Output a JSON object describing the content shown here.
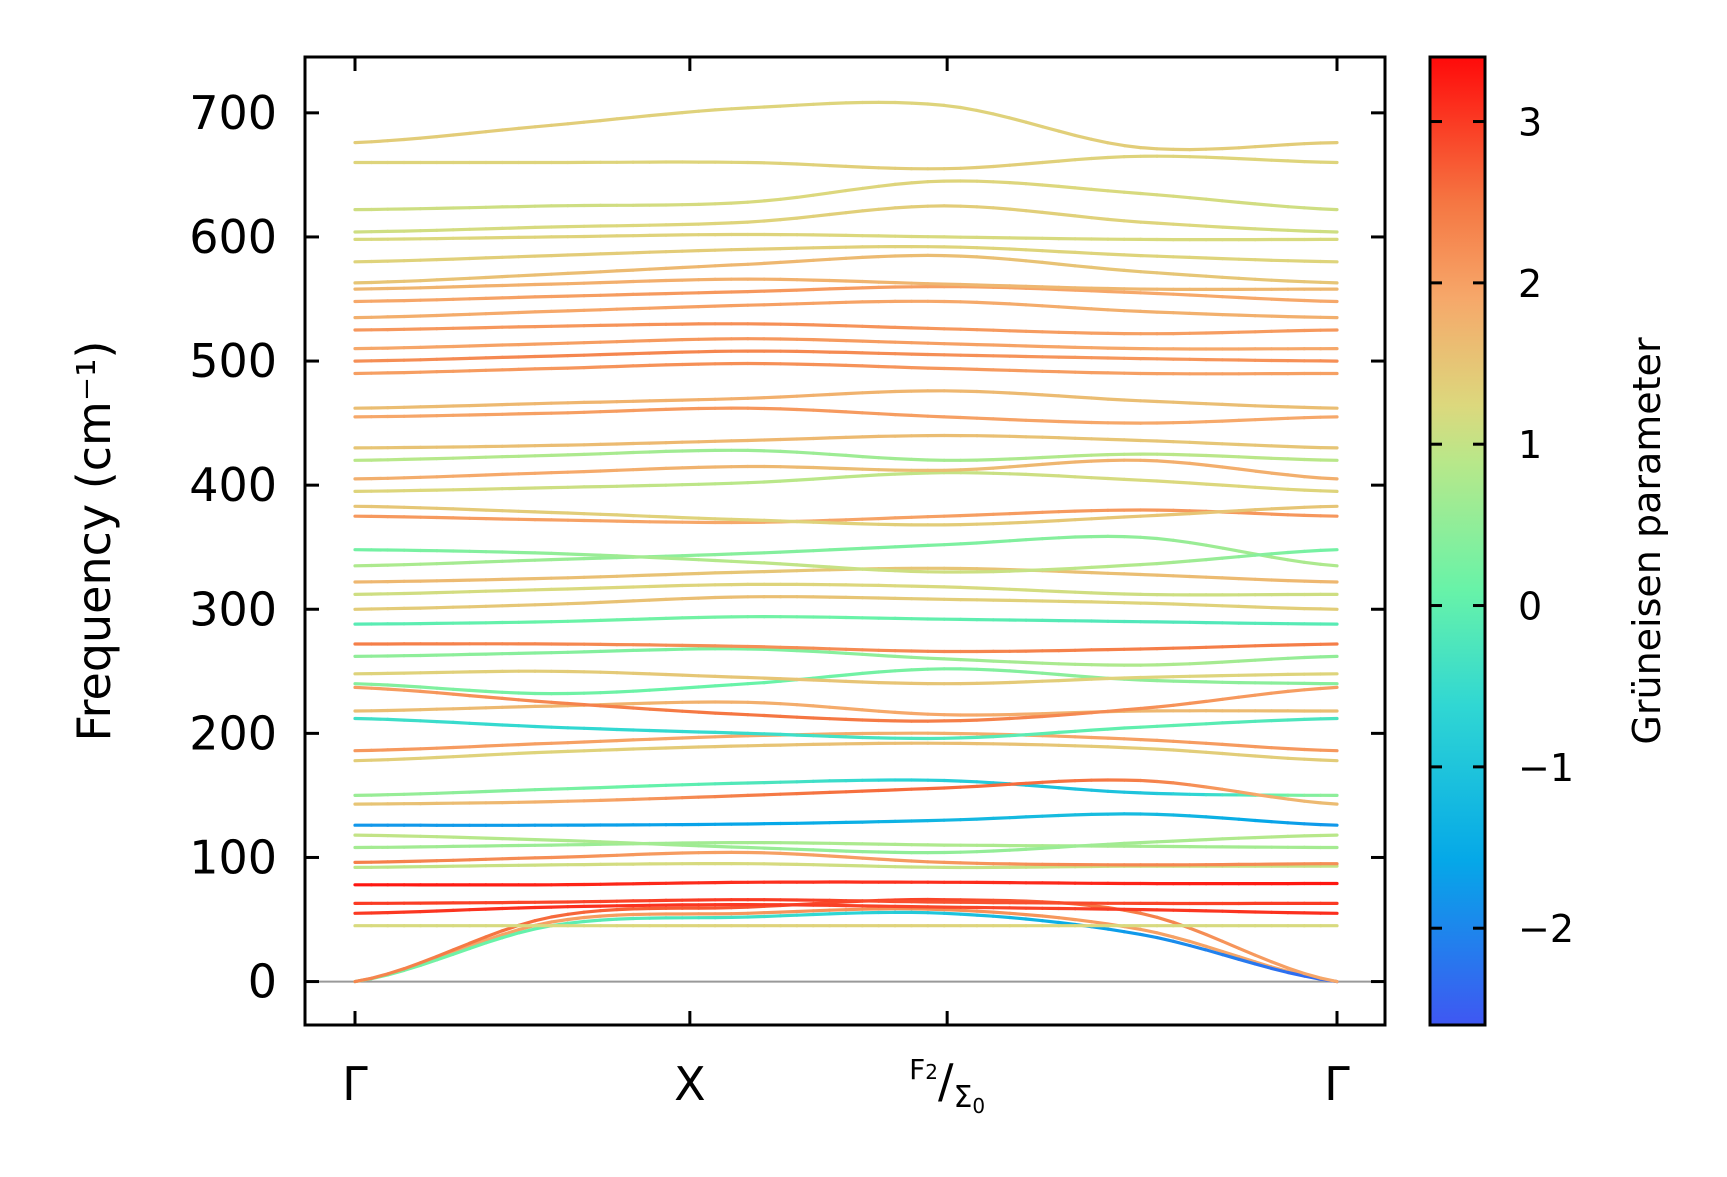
{
  "chart_data": {
    "type": "line",
    "title": "",
    "xlabel": "",
    "ylabel": "Frequency (cm⁻¹)",
    "ylim": [
      -35,
      745
    ],
    "y_ticks": [
      0,
      100,
      200,
      300,
      400,
      500,
      600,
      700
    ],
    "x_ticks": [
      {
        "label": "Γ",
        "pos": 0.0
      },
      {
        "label": "X",
        "pos": 0.341
      },
      {
        "label": "F₂/Σ₀",
        "pos": 0.603
      },
      {
        "label": "Γ",
        "pos": 1.0
      }
    ],
    "x_label_parts": {
      "num": "F",
      "num_sub": "2",
      "den": "Σ",
      "den_sub": "0"
    },
    "zero_line": 0,
    "colorbar": {
      "label": "Grüneisen parameter",
      "range": [
        -2.6,
        3.4
      ],
      "ticks": [
        -2,
        -1,
        0,
        1,
        2,
        3
      ],
      "tick_labels": [
        "−2",
        "−1",
        "0",
        "1",
        "2",
        "3"
      ],
      "colormap": "rainbow"
    },
    "series": [
      {
        "y": [
          0,
          48,
          55,
          58,
          42,
          0
        ],
        "g": [
          1.9,
          2.0,
          2.1,
          2.2,
          2.0,
          1.9
        ]
      },
      {
        "y": [
          0,
          45,
          52,
          55,
          38,
          0
        ],
        "g": [
          0.3,
          0.0,
          -0.4,
          -1.0,
          -1.8,
          -2.4
        ]
      },
      {
        "y": [
          0,
          52,
          60,
          66,
          55,
          0
        ],
        "g": [
          2.3,
          2.6,
          2.8,
          2.9,
          2.4,
          1.9
        ]
      },
      {
        "y": [
          45,
          45,
          45,
          45,
          45,
          45
        ],
        "g": [
          1.2,
          1.2,
          1.3,
          1.3,
          1.2,
          1.2
        ]
      },
      {
        "y": [
          55,
          60,
          62,
          60,
          58,
          55
        ],
        "g": [
          3.0,
          3.1,
          3.0,
          2.9,
          3.0,
          3.1
        ]
      },
      {
        "y": [
          63,
          64,
          66,
          64,
          63,
          63
        ],
        "g": [
          3.0,
          2.9,
          3.0,
          2.8,
          2.9,
          3.0
        ]
      },
      {
        "y": [
          78,
          78,
          80,
          80,
          79,
          79
        ],
        "g": [
          3.3,
          3.2,
          3.1,
          3.1,
          3.2,
          3.3
        ]
      },
      {
        "y": [
          92,
          94,
          95,
          92,
          93,
          93
        ],
        "g": [
          0.9,
          1.1,
          1.2,
          1.0,
          1.1,
          1.0
        ]
      },
      {
        "y": [
          96,
          100,
          104,
          96,
          94,
          95
        ],
        "g": [
          2.4,
          2.2,
          2.0,
          2.1,
          2.3,
          2.2
        ]
      },
      {
        "y": [
          108,
          110,
          112,
          110,
          109,
          108
        ],
        "g": [
          0.7,
          0.6,
          0.7,
          0.8,
          0.7,
          0.7
        ]
      },
      {
        "y": [
          118,
          114,
          108,
          104,
          112,
          118
        ],
        "g": [
          1.0,
          0.8,
          0.6,
          0.5,
          0.7,
          0.9
        ]
      },
      {
        "y": [
          126,
          126,
          127,
          130,
          135,
          126
        ],
        "g": [
          -1.8,
          -1.7,
          -1.6,
          -1.3,
          -1.2,
          -1.8
        ]
      },
      {
        "y": [
          150,
          155,
          160,
          162,
          152,
          150
        ],
        "g": [
          0.6,
          0.3,
          -0.2,
          -0.8,
          -1.0,
          0.5
        ]
      },
      {
        "y": [
          143,
          145,
          150,
          156,
          162,
          143
        ],
        "g": [
          1.5,
          1.8,
          2.4,
          2.6,
          2.4,
          1.6
        ]
      },
      {
        "y": [
          178,
          185,
          190,
          192,
          188,
          178
        ],
        "g": [
          1.4,
          1.3,
          1.5,
          1.6,
          1.4,
          1.4
        ]
      },
      {
        "y": [
          186,
          192,
          198,
          200,
          195,
          186
        ],
        "g": [
          2.1,
          2.0,
          1.9,
          1.8,
          2.0,
          2.1
        ]
      },
      {
        "y": [
          212,
          205,
          200,
          196,
          205,
          212
        ],
        "g": [
          -0.4,
          -0.6,
          -0.5,
          -0.2,
          0.0,
          -0.3
        ]
      },
      {
        "y": [
          218,
          222,
          225,
          215,
          218,
          218
        ],
        "g": [
          1.6,
          1.7,
          1.8,
          1.9,
          1.7,
          1.6
        ]
      },
      {
        "y": [
          237,
          225,
          215,
          210,
          220,
          237
        ],
        "g": [
          2.0,
          2.3,
          2.5,
          2.4,
          2.2,
          2.0
        ]
      },
      {
        "y": [
          240,
          232,
          240,
          252,
          243,
          240
        ],
        "g": [
          0.4,
          0.2,
          0.1,
          0.3,
          0.5,
          0.4
        ]
      },
      {
        "y": [
          248,
          250,
          245,
          240,
          245,
          248
        ],
        "g": [
          1.3,
          1.4,
          1.5,
          1.5,
          1.3,
          1.3
        ]
      },
      {
        "y": [
          262,
          265,
          268,
          260,
          255,
          262
        ],
        "g": [
          0.5,
          0.4,
          0.3,
          0.6,
          0.8,
          0.5
        ]
      },
      {
        "y": [
          272,
          272,
          270,
          266,
          268,
          272
        ],
        "g": [
          2.4,
          2.3,
          2.2,
          2.3,
          2.4,
          2.4
        ]
      },
      {
        "y": [
          288,
          290,
          294,
          292,
          290,
          288
        ],
        "g": [
          -0.1,
          0.1,
          0.2,
          0.0,
          -0.2,
          -0.1
        ]
      },
      {
        "y": [
          300,
          304,
          310,
          308,
          305,
          300
        ],
        "g": [
          1.4,
          1.5,
          1.6,
          1.4,
          1.3,
          1.4
        ]
      },
      {
        "y": [
          312,
          316,
          320,
          318,
          312,
          312
        ],
        "g": [
          1.1,
          1.2,
          1.3,
          1.2,
          1.1,
          1.1
        ]
      },
      {
        "y": [
          322,
          325,
          330,
          333,
          328,
          322
        ],
        "g": [
          1.7,
          1.6,
          1.5,
          1.5,
          1.6,
          1.7
        ]
      },
      {
        "y": [
          335,
          340,
          345,
          352,
          358,
          335
        ],
        "g": [
          0.8,
          0.6,
          0.4,
          0.3,
          0.5,
          0.8
        ]
      },
      {
        "y": [
          348,
          345,
          338,
          330,
          336,
          348
        ],
        "g": [
          0.2,
          0.5,
          0.9,
          1.1,
          0.8,
          0.2
        ]
      },
      {
        "y": [
          375,
          372,
          370,
          375,
          380,
          375
        ],
        "g": [
          2.1,
          2.0,
          1.9,
          2.0,
          2.1,
          2.1
        ]
      },
      {
        "y": [
          383,
          378,
          372,
          368,
          375,
          383
        ],
        "g": [
          1.5,
          1.4,
          1.3,
          1.4,
          1.5,
          1.5
        ]
      },
      {
        "y": [
          395,
          398,
          402,
          410,
          404,
          395
        ],
        "g": [
          1.3,
          1.1,
          0.9,
          1.0,
          1.2,
          1.3
        ]
      },
      {
        "y": [
          405,
          410,
          415,
          412,
          420,
          405
        ],
        "g": [
          1.8,
          1.9,
          1.7,
          1.6,
          1.8,
          1.8
        ]
      },
      {
        "y": [
          420,
          424,
          428,
          420,
          425,
          420
        ],
        "g": [
          0.9,
          0.8,
          0.6,
          0.7,
          0.9,
          0.9
        ]
      },
      {
        "y": [
          430,
          432,
          436,
          440,
          436,
          430
        ],
        "g": [
          1.5,
          1.6,
          1.7,
          1.6,
          1.5,
          1.5
        ]
      },
      {
        "y": [
          455,
          458,
          462,
          455,
          450,
          455
        ],
        "g": [
          1.9,
          2.0,
          2.1,
          2.0,
          1.9,
          1.9
        ]
      },
      {
        "y": [
          462,
          466,
          470,
          476,
          468,
          462
        ],
        "g": [
          1.6,
          1.7,
          1.8,
          1.7,
          1.6,
          1.6
        ]
      },
      {
        "y": [
          490,
          494,
          498,
          494,
          490,
          490
        ],
        "g": [
          2.0,
          2.1,
          2.2,
          2.1,
          2.0,
          2.0
        ]
      },
      {
        "y": [
          500,
          504,
          508,
          505,
          502,
          500
        ],
        "g": [
          2.2,
          2.3,
          2.3,
          2.2,
          2.1,
          2.2
        ]
      },
      {
        "y": [
          510,
          514,
          518,
          514,
          510,
          510
        ],
        "g": [
          1.9,
          2.0,
          2.1,
          2.0,
          1.9,
          1.9
        ]
      },
      {
        "y": [
          525,
          528,
          530,
          526,
          522,
          525
        ],
        "g": [
          2.1,
          2.1,
          2.2,
          2.1,
          2.0,
          2.1
        ]
      },
      {
        "y": [
          535,
          540,
          545,
          548,
          540,
          535
        ],
        "g": [
          1.8,
          1.9,
          2.0,
          1.9,
          1.8,
          1.8
        ]
      },
      {
        "y": [
          548,
          552,
          556,
          560,
          555,
          548
        ],
        "g": [
          1.9,
          2.0,
          2.1,
          2.0,
          1.9,
          1.9
        ]
      },
      {
        "y": [
          558,
          562,
          566,
          562,
          558,
          558
        ],
        "g": [
          1.7,
          1.8,
          1.8,
          1.7,
          1.7,
          1.7
        ]
      },
      {
        "y": [
          563,
          570,
          578,
          585,
          572,
          563
        ],
        "g": [
          1.5,
          1.6,
          1.7,
          1.6,
          1.5,
          1.5
        ]
      },
      {
        "y": [
          580,
          585,
          590,
          592,
          585,
          580
        ],
        "g": [
          1.3,
          1.4,
          1.4,
          1.3,
          1.3,
          1.3
        ]
      },
      {
        "y": [
          598,
          600,
          602,
          600,
          598,
          598
        ],
        "g": [
          1.2,
          1.3,
          1.3,
          1.2,
          1.2,
          1.2
        ]
      },
      {
        "y": [
          604,
          608,
          612,
          625,
          612,
          604
        ],
        "g": [
          1.1,
          1.2,
          1.3,
          1.4,
          1.3,
          1.1
        ]
      },
      {
        "y": [
          622,
          625,
          628,
          645,
          635,
          622
        ],
        "g": [
          1.1,
          1.1,
          1.2,
          1.3,
          1.2,
          1.1
        ]
      },
      {
        "y": [
          660,
          660,
          660,
          655,
          665,
          660
        ],
        "g": [
          1.3,
          1.3,
          1.3,
          1.4,
          1.3,
          1.3
        ]
      },
      {
        "y": [
          676,
          690,
          704,
          706,
          672,
          676
        ],
        "g": [
          1.4,
          1.4,
          1.3,
          1.3,
          1.4,
          1.4
        ]
      }
    ]
  }
}
